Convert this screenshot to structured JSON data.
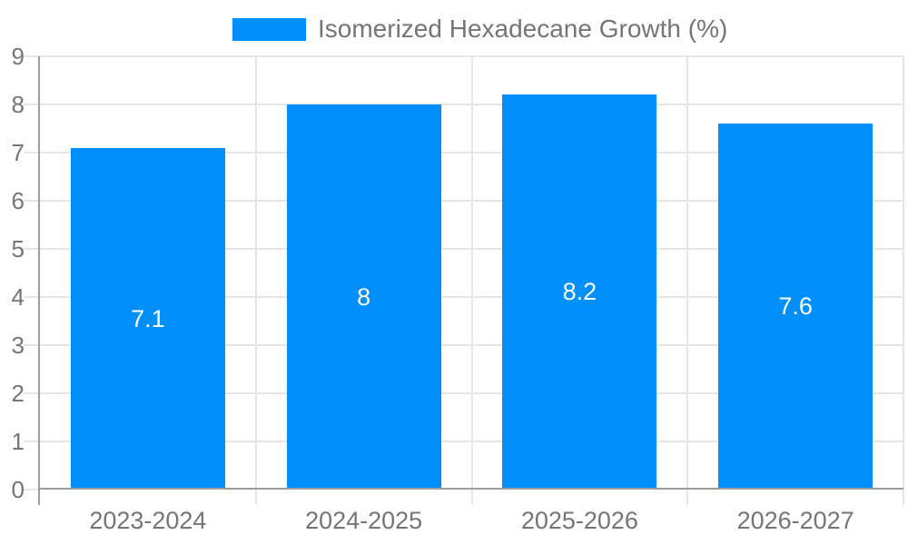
{
  "chart_data": {
    "type": "bar",
    "title": "",
    "legend": "Isomerized Hexadecane Growth (%)",
    "legend_position": "top",
    "categories": [
      "2023-2024",
      "2024-2025",
      "2025-2026",
      "2026-2027"
    ],
    "values": [
      7.1,
      8,
      8.2,
      7.6
    ],
    "bar_labels": [
      "7.1",
      "8",
      "8.2",
      "7.6"
    ],
    "xlabel": "",
    "ylabel": "",
    "ylim": [
      0,
      9
    ],
    "y_ticks": [
      0,
      1,
      2,
      3,
      4,
      5,
      6,
      7,
      8,
      9
    ],
    "grid": true,
    "colors": {
      "bar": "#008FFB",
      "grid": "#e6e6e6",
      "axis": "#9e9e9e",
      "label": "#757575",
      "data_label": "#ffffff",
      "background": "#ffffff"
    }
  }
}
